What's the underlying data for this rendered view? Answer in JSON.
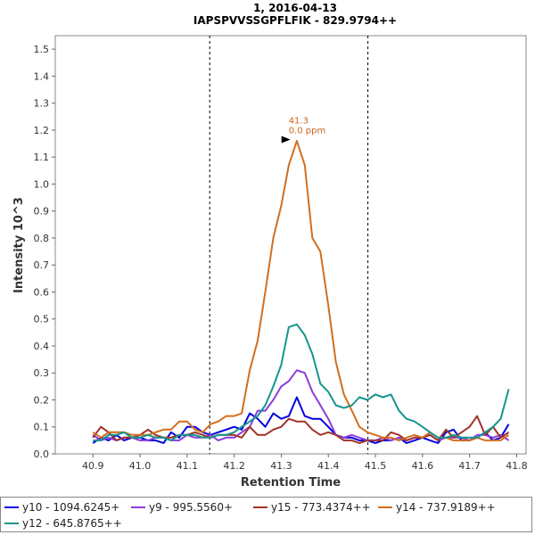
{
  "chart_data": {
    "type": "line",
    "title": "1, 2016-04-13",
    "subtitle": "IAPSPVVSSGPFLFIK - 829.9794++",
    "xlabel": "Retention Time",
    "ylabel": "Intensity 10^3",
    "xlim": [
      40.82,
      41.82
    ],
    "ylim": [
      0,
      1.55
    ],
    "x_ticks": [
      "40.9",
      "41.0",
      "41.1",
      "41.2",
      "41.3",
      "41.4",
      "41.5",
      "41.6",
      "41.7",
      "41.8"
    ],
    "y_ticks": [
      "0.0",
      "0.1",
      "0.2",
      "0.3",
      "0.4",
      "0.5",
      "0.6",
      "0.7",
      "0.8",
      "0.9",
      "1.0",
      "1.1",
      "1.2",
      "1.3",
      "1.4",
      "1.5"
    ],
    "integration_bounds": [
      41.148,
      41.484
    ],
    "peak_annotation": {
      "x": 41.327,
      "y": 1.165,
      "rt_label": "41.3",
      "ppm_label": "0.0 ppm",
      "color": "#c8641e"
    },
    "legend_position": "bottom",
    "x": [
      40.9,
      40.917,
      40.933,
      40.95,
      40.966,
      40.983,
      41.0,
      41.017,
      41.033,
      41.05,
      41.066,
      41.083,
      41.1,
      41.117,
      41.133,
      41.15,
      41.166,
      41.183,
      41.2,
      41.216,
      41.233,
      41.25,
      41.266,
      41.283,
      41.3,
      41.316,
      41.333,
      41.35,
      41.366,
      41.383,
      41.4,
      41.416,
      41.433,
      41.45,
      41.466,
      41.483,
      41.5,
      41.516,
      41.533,
      41.55,
      41.566,
      41.583,
      41.6,
      41.616,
      41.633,
      41.65,
      41.666,
      41.683,
      41.7,
      41.716,
      41.733,
      41.75,
      41.766,
      41.783
    ],
    "series": [
      {
        "name": "y10 - 1094.6245+",
        "color": "#0000e0",
        "values": [
          0.04,
          0.06,
          0.05,
          0.07,
          0.05,
          0.06,
          0.06,
          0.05,
          0.05,
          0.04,
          0.08,
          0.06,
          0.1,
          0.1,
          0.08,
          0.07,
          0.08,
          0.09,
          0.1,
          0.09,
          0.15,
          0.13,
          0.1,
          0.15,
          0.13,
          0.14,
          0.21,
          0.14,
          0.13,
          0.13,
          0.1,
          0.07,
          0.06,
          0.06,
          0.05,
          0.05,
          0.04,
          0.05,
          0.05,
          0.06,
          0.04,
          0.05,
          0.06,
          0.05,
          0.04,
          0.08,
          0.09,
          0.05,
          0.05,
          0.06,
          0.08,
          0.05,
          0.06,
          0.11
        ]
      },
      {
        "name": "y9 - 995.5560+",
        "color": "#8c3cdc",
        "values": [
          0.07,
          0.05,
          0.06,
          0.05,
          0.06,
          0.06,
          0.05,
          0.05,
          0.06,
          0.06,
          0.05,
          0.05,
          0.07,
          0.06,
          0.06,
          0.07,
          0.05,
          0.06,
          0.06,
          0.08,
          0.1,
          0.16,
          0.16,
          0.2,
          0.25,
          0.27,
          0.31,
          0.3,
          0.23,
          0.18,
          0.13,
          0.07,
          0.06,
          0.07,
          0.06,
          0.05,
          0.05,
          0.06,
          0.05,
          0.06,
          0.05,
          0.06,
          0.06,
          0.07,
          0.05,
          0.06,
          0.06,
          0.06,
          0.05,
          0.07,
          0.07,
          0.06,
          0.07,
          0.05
        ]
      },
      {
        "name": "y15 - 773.4374++",
        "color": "#a03228",
        "values": [
          0.06,
          0.1,
          0.08,
          0.05,
          0.06,
          0.06,
          0.07,
          0.09,
          0.07,
          0.06,
          0.06,
          0.07,
          0.07,
          0.08,
          0.07,
          0.06,
          0.07,
          0.07,
          0.07,
          0.06,
          0.1,
          0.07,
          0.07,
          0.09,
          0.1,
          0.13,
          0.12,
          0.12,
          0.09,
          0.07,
          0.08,
          0.07,
          0.05,
          0.05,
          0.04,
          0.05,
          0.05,
          0.05,
          0.08,
          0.07,
          0.05,
          0.06,
          0.06,
          0.07,
          0.05,
          0.09,
          0.06,
          0.08,
          0.1,
          0.14,
          0.07,
          0.1,
          0.06,
          0.08
        ]
      },
      {
        "name": "y14 - 737.9189++",
        "color": "#d26e1e",
        "values": [
          0.08,
          0.06,
          0.08,
          0.08,
          0.08,
          0.07,
          0.07,
          0.07,
          0.08,
          0.09,
          0.09,
          0.12,
          0.12,
          0.09,
          0.08,
          0.11,
          0.12,
          0.14,
          0.14,
          0.15,
          0.31,
          0.42,
          0.6,
          0.8,
          0.92,
          1.07,
          1.16,
          1.07,
          0.8,
          0.75,
          0.55,
          0.34,
          0.22,
          0.16,
          0.1,
          0.08,
          0.07,
          0.06,
          0.06,
          0.05,
          0.06,
          0.07,
          0.06,
          0.08,
          0.06,
          0.06,
          0.05,
          0.05,
          0.05,
          0.06,
          0.05,
          0.05,
          0.05,
          0.07
        ]
      },
      {
        "name": "y12 - 645.8765++",
        "color": "#14968c",
        "values": [
          0.05,
          0.05,
          0.07,
          0.07,
          0.08,
          0.06,
          0.06,
          0.07,
          0.06,
          0.06,
          0.05,
          0.07,
          0.07,
          0.07,
          0.06,
          0.06,
          0.07,
          0.07,
          0.08,
          0.1,
          0.12,
          0.14,
          0.18,
          0.25,
          0.33,
          0.47,
          0.48,
          0.44,
          0.37,
          0.26,
          0.23,
          0.18,
          0.17,
          0.18,
          0.21,
          0.2,
          0.22,
          0.21,
          0.22,
          0.16,
          0.13,
          0.12,
          0.1,
          0.08,
          0.06,
          0.06,
          0.07,
          0.06,
          0.06,
          0.06,
          0.08,
          0.1,
          0.13,
          0.24
        ]
      }
    ]
  }
}
